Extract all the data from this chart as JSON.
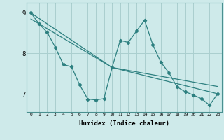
{
  "xlabel": "Humidex (Indice chaleur)",
  "background_color": "#ceeaea",
  "grid_color": "#aacfcf",
  "line_color": "#2d8080",
  "x_ticks": [
    0,
    1,
    2,
    3,
    4,
    5,
    6,
    7,
    8,
    9,
    10,
    11,
    12,
    13,
    14,
    15,
    16,
    17,
    18,
    19,
    20,
    21,
    22,
    23
  ],
  "y_ticks": [
    7,
    8,
    9
  ],
  "ylim": [
    6.55,
    9.25
  ],
  "xlim": [
    -0.5,
    23.5
  ],
  "series1_x": [
    0,
    1,
    2,
    3,
    4,
    5,
    6,
    7,
    8,
    9,
    10,
    11,
    12,
    13,
    14,
    15,
    16,
    17,
    18,
    19,
    20,
    21,
    22,
    23
  ],
  "series1_y": [
    9.0,
    8.73,
    8.52,
    8.15,
    7.72,
    7.67,
    7.22,
    6.87,
    6.85,
    6.88,
    7.65,
    8.32,
    8.27,
    8.55,
    8.82,
    8.22,
    7.78,
    7.52,
    7.17,
    7.05,
    6.97,
    6.88,
    6.72,
    7.0
  ],
  "trend1_x": [
    0,
    10,
    23
  ],
  "trend1_y": [
    9.0,
    7.65,
    7.0
  ],
  "trend2_x": [
    0,
    10,
    23
  ],
  "trend2_y": [
    8.85,
    7.65,
    7.18
  ]
}
